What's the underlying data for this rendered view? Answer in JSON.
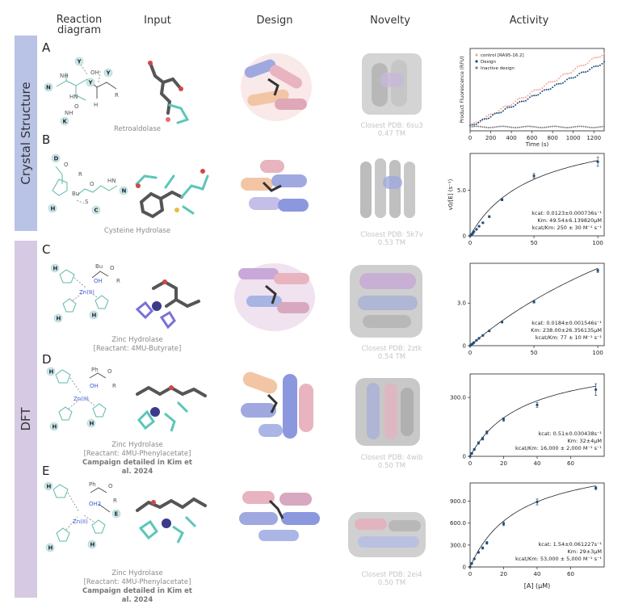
{
  "columns": [
    "Reaction\ndiagram",
    "Input",
    "Design",
    "Novelty",
    "Activity"
  ],
  "groups": [
    {
      "label": "Crystal Structure"
    },
    {
      "label": "DFT"
    }
  ],
  "rows": [
    {
      "letter": "A",
      "caption": "Retroaldolase",
      "caption2": "",
      "caption3": "",
      "pdb": "Closest PDB: 6su3",
      "tm": "0.47 TM"
    },
    {
      "letter": "B",
      "caption": "Cysteine Hydrolase",
      "caption2": "",
      "caption3": "",
      "pdb": "Closest PDB: 5k7v",
      "tm": "0.53 TM"
    },
    {
      "letter": "C",
      "caption": "Zinc Hydrolase",
      "caption2": "[Reactant: 4MU-Butyrate]",
      "caption3": "",
      "pdb": "Closest PDB: 2ztk",
      "tm": "0.54 TM"
    },
    {
      "letter": "D",
      "caption": "Zinc Hydrolase",
      "caption2": "[Reactant: 4MU-Phenylacetate]",
      "caption3": "Campaign detailed in Kim et al. 2024",
      "pdb": "Closest PDB: 4wib",
      "tm": "0.50 TM"
    },
    {
      "letter": "E",
      "caption": "Zinc Hydrolase",
      "caption2": "[Reactant: 4MU-Phenylacetate]",
      "caption3": "Campaign detailed in Kim et al. 2024",
      "pdb": "Closest PDB: 2ei4",
      "tm": "0.50 TM"
    }
  ],
  "reaction_labels": {
    "A": {
      "residues": [
        "Y",
        "Y",
        "Y",
        "N",
        "K"
      ],
      "groups": [
        "NH",
        "HN",
        "OH",
        "O",
        "H",
        "R",
        "NH"
      ]
    },
    "B": {
      "residues": [
        "D",
        "N",
        "H",
        "C"
      ],
      "groups": [
        "R",
        "Bu",
        "O",
        "O",
        "HN",
        "S"
      ]
    },
    "C": {
      "residues": [
        "H",
        "H",
        "H"
      ],
      "groups": [
        "Bu",
        "O",
        "OH",
        "R",
        "Zn(II)"
      ]
    },
    "D": {
      "residues": [
        "H",
        "H",
        "H"
      ],
      "groups": [
        "Ph",
        "O",
        "OH",
        "R",
        "Zn(II)"
      ]
    },
    "E": {
      "residues": [
        "H",
        "H",
        "H",
        "E"
      ],
      "groups": [
        "Ph",
        "O",
        "OH2",
        "R",
        "Zn(II)"
      ]
    }
  },
  "chart_data": [
    {
      "type": "scatter",
      "row": "A",
      "xlabel": "Time (s)",
      "ylabel": "Product Fluorescence (RFU)",
      "xticks": [
        "0",
        "200",
        "400",
        "600",
        "800",
        "1000",
        "1200"
      ],
      "xlim": [
        0,
        1300
      ],
      "ylim": [
        -0.3,
        5
      ],
      "legend": [
        "control [RA95-16.2]",
        "Design",
        "Inactive design"
      ],
      "series": [
        {
          "name": "control [RA95-16.2]",
          "color": "#f2a99a",
          "slope": 0.0036
        },
        {
          "name": "Design",
          "color": "#1f4e79",
          "slope": 0.00315
        },
        {
          "name": "Inactive design",
          "color": "#7f7f7f",
          "slope": 0
        }
      ]
    },
    {
      "type": "scatter",
      "row": "B",
      "ylabel": "v0/[E] (s⁻¹)",
      "xticks": [
        "0",
        "50",
        "100"
      ],
      "yticks": [
        "0",
        "5.0"
      ],
      "xlim": [
        0,
        105
      ],
      "ylim": [
        0,
        9
      ],
      "x": [
        0,
        1,
        2,
        3,
        5,
        7,
        10,
        15,
        25,
        50,
        100
      ],
      "y": [
        0,
        0.13,
        0.23,
        0.45,
        0.71,
        1.05,
        1.43,
        2.1,
        3.95,
        6.55,
        8.1
      ],
      "err": [
        0,
        0.04,
        0.04,
        0.05,
        0.06,
        0.07,
        0.08,
        0.1,
        0.12,
        0.25,
        0.5
      ],
      "fit": {
        "vmax": 12.3,
        "km": 49.54
      },
      "kcat_label": "kcat: 0.0123±0.000736s⁻¹",
      "km_label": "Km: 49.54±6.139820μM",
      "eff_label": "kcat/Km: 250 ± 30 M⁻¹ s⁻¹"
    },
    {
      "type": "scatter",
      "row": "C",
      "xticks": [
        "0",
        "50",
        "100"
      ],
      "yticks": [
        "0",
        "3.0"
      ],
      "xlim": [
        0,
        105
      ],
      "ylim": [
        0,
        5.8
      ],
      "x": [
        0,
        1,
        2,
        3,
        5,
        7,
        10,
        15,
        25,
        50,
        100
      ],
      "y": [
        0,
        0.07,
        0.14,
        0.22,
        0.38,
        0.52,
        0.72,
        1.04,
        1.66,
        3.08,
        5.28
      ],
      "err": [
        0,
        0.02,
        0.02,
        0.03,
        0.03,
        0.04,
        0.04,
        0.05,
        0.06,
        0.08,
        0.12
      ],
      "fit": {
        "vmax": 18.4,
        "km": 238.0
      },
      "kcat_label": "kcat: 0.0184±0.001546s⁻¹",
      "km_label": "Km: 238.00±26.356135μM",
      "eff_label": "kcat/Km: 77 ± 10 M⁻¹ s⁻¹"
    },
    {
      "type": "scatter",
      "row": "D",
      "xticks": [
        "0",
        "20",
        "40",
        "60"
      ],
      "yticks": [
        "0",
        "300.0"
      ],
      "xlim": [
        0,
        80
      ],
      "ylim": [
        0,
        420
      ],
      "x": [
        0,
        1,
        2.5,
        5,
        7.5,
        10,
        20,
        40,
        75
      ],
      "y": [
        0,
        15,
        35,
        68,
        90,
        122,
        188,
        262,
        340
      ],
      "err": [
        0,
        4,
        5,
        6,
        7,
        8,
        9,
        12,
        30
      ],
      "fit": {
        "vmax": 510,
        "km": 32
      },
      "kcat_label": "kcat: 0.51±0.030438s⁻¹",
      "km_label": "Km: 32±4μM",
      "eff_label": "kcat/Km: 16,000 ± 2,000 M⁻¹ s⁻¹"
    },
    {
      "type": "scatter",
      "row": "E",
      "xlabel": "[A] (μM)",
      "xticks": [
        "0",
        "20",
        "40",
        "60"
      ],
      "yticks": [
        "0",
        "300.0",
        "600.0",
        "900.0"
      ],
      "xlim": [
        0,
        80
      ],
      "ylim": [
        0,
        1150
      ],
      "x": [
        0,
        1,
        2.5,
        5,
        7.5,
        10,
        20,
        40,
        75
      ],
      "y": [
        0,
        48,
        110,
        200,
        260,
        330,
        590,
        890,
        1080
      ],
      "err": [
        0,
        8,
        10,
        12,
        15,
        18,
        25,
        40,
        20
      ],
      "fit": {
        "vmax": 1540,
        "km": 29
      },
      "kcat_label": "kcat: 1.54±0.061227s⁻¹",
      "km_label": "Km: 29±3μM",
      "eff_label": "kcat/Km: 53,000 ± 5,000 M⁻¹ s⁻¹"
    }
  ]
}
